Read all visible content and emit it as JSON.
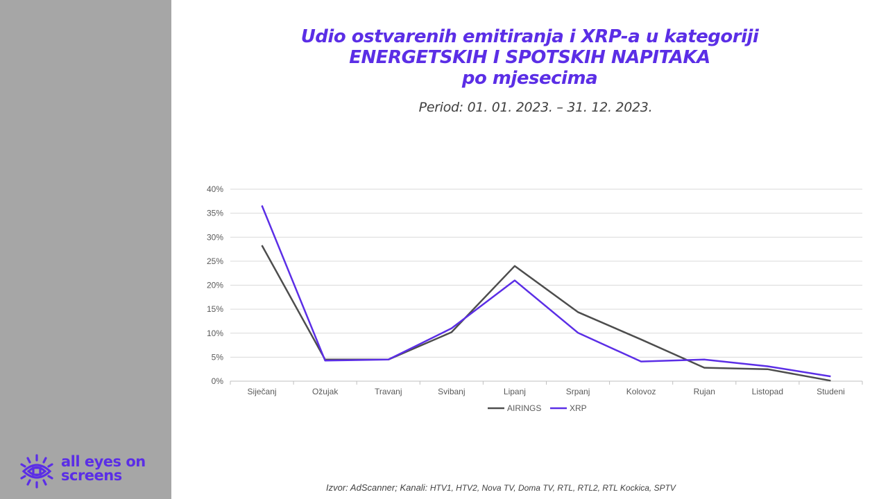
{
  "title_lines": [
    "Udio ostvarenih emitiranja i XRP-a u kategoriji",
    "ENERGETSKIH I SPOTSKIH NAPITAKA",
    "po mjesecima"
  ],
  "subtitle": "Period: 01. 01. 2023. – 31. 12. 2023.",
  "logo": {
    "line1": "all eyes on",
    "line2": "screens"
  },
  "source": {
    "prefix": "Izvor: AdScanner; Kanali: ",
    "channels": "HTV1, HTV2, Nova TV, Doma TV, RTL, RTL2, RTL Kockica, SPTV"
  },
  "colors": {
    "accent": "#5b2ee6",
    "airings": "#4d4d4d",
    "xrp": "#5b2ee6",
    "sidebar": "#a6a6a6"
  },
  "chart_data": {
    "type": "line",
    "categories": [
      "Siječanj",
      "Ožujak",
      "Travanj",
      "Svibanj",
      "Lipanj",
      "Srpanj",
      "Kolovoz",
      "Rujan",
      "Listopad",
      "Studeni"
    ],
    "series": [
      {
        "name": "AIRINGS",
        "color": "#4d4d4d",
        "values": [
          28.3,
          4.5,
          4.5,
          10.2,
          24.0,
          14.4,
          8.7,
          2.8,
          2.5,
          0.1
        ]
      },
      {
        "name": "XRP",
        "color": "#5b2ee6",
        "values": [
          36.6,
          4.3,
          4.5,
          11.0,
          21.0,
          10.1,
          4.1,
          4.5,
          3.1,
          1.0
        ]
      }
    ],
    "y_ticks": [
      "0%",
      "5%",
      "10%",
      "15%",
      "20%",
      "25%",
      "30%",
      "35%",
      "40%"
    ],
    "ylim": [
      0,
      40
    ],
    "grid": true,
    "legend_position": "bottom"
  }
}
